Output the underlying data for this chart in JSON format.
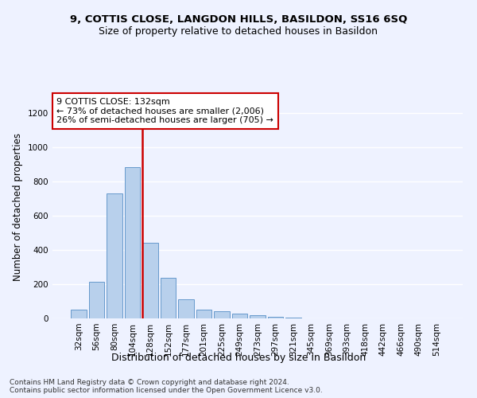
{
  "title": "9, COTTIS CLOSE, LANGDON HILLS, BASILDON, SS16 6SQ",
  "subtitle": "Size of property relative to detached houses in Basildon",
  "xlabel": "Distribution of detached houses by size in Basildon",
  "ylabel": "Number of detached properties",
  "categories": [
    "32sqm",
    "56sqm",
    "80sqm",
    "104sqm",
    "128sqm",
    "152sqm",
    "177sqm",
    "201sqm",
    "225sqm",
    "249sqm",
    "273sqm",
    "297sqm",
    "321sqm",
    "345sqm",
    "369sqm",
    "393sqm",
    "418sqm",
    "442sqm",
    "466sqm",
    "490sqm",
    "514sqm"
  ],
  "values": [
    50,
    215,
    730,
    880,
    440,
    235,
    110,
    50,
    40,
    30,
    20,
    10,
    5,
    0,
    0,
    0,
    0,
    0,
    0,
    0,
    0
  ],
  "bar_color": "#B8D0EC",
  "bar_edge_color": "#6699CC",
  "highlight_line_color": "#CC0000",
  "annotation_text": "9 COTTIS CLOSE: 132sqm\n← 73% of detached houses are smaller (2,006)\n26% of semi-detached houses are larger (705) →",
  "annotation_box_color": "#CC0000",
  "ylim": [
    0,
    1300
  ],
  "yticks": [
    0,
    200,
    400,
    600,
    800,
    1000,
    1200
  ],
  "footer": "Contains HM Land Registry data © Crown copyright and database right 2024.\nContains public sector information licensed under the Open Government Licence v3.0.",
  "bg_color": "#EEF2FF",
  "title_fontsize": 9.5,
  "subtitle_fontsize": 9,
  "annotation_fontsize": 8,
  "ylabel_fontsize": 8.5,
  "xlabel_fontsize": 9,
  "footer_fontsize": 6.5,
  "tick_fontsize": 7.5
}
